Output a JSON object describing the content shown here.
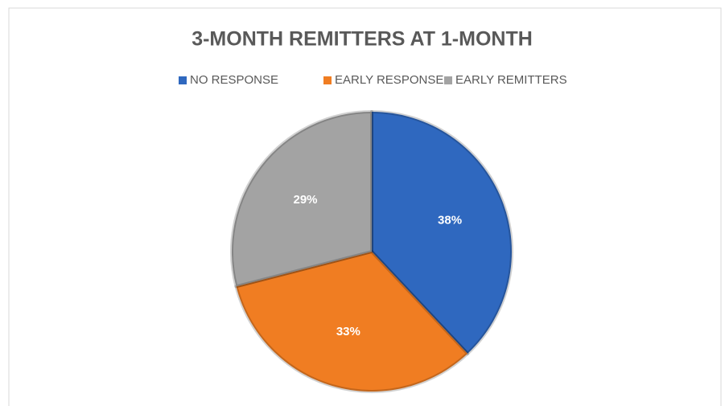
{
  "chart_data": {
    "type": "pie",
    "title": "3-MONTH REMITTERS AT 1-MONTH",
    "categories": [
      "NO RESPONSE",
      "EARLY RESPONSE",
      "EARLY REMITTERS"
    ],
    "values": [
      38,
      33,
      29
    ],
    "value_labels": [
      "38%",
      "33%",
      "29%"
    ],
    "colors": [
      "#2f68bf",
      "#f07d22",
      "#a3a3a3"
    ],
    "legend": "top"
  }
}
